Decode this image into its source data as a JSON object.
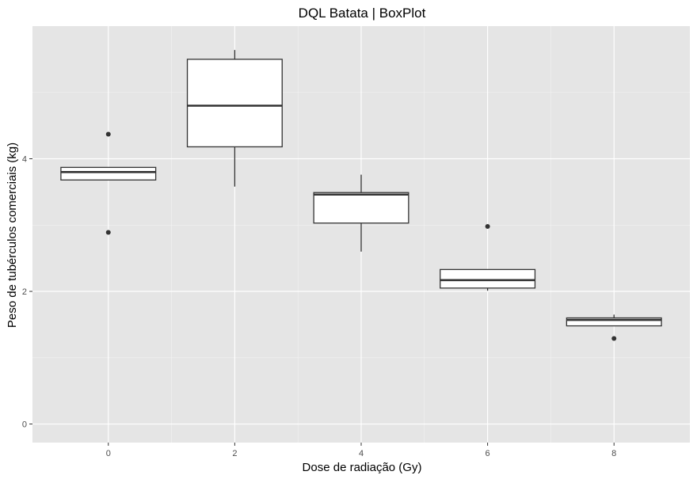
{
  "chart_data": {
    "type": "boxplot",
    "title": "DQL Batata | BoxPlot",
    "xlabel": "Dose de radiação (Gy)",
    "ylabel": "Peso de tubérculos comerciais (kg)",
    "x_ticks": [
      "0",
      "2",
      "4",
      "6",
      "8"
    ],
    "y_ticks": [
      "0",
      "2",
      "4"
    ],
    "xlim": [
      -1.2,
      9.2
    ],
    "ylim": [
      -0.28,
      6.0
    ],
    "grid": true,
    "colors": {
      "panel": "#e5e5e5",
      "grid_major": "#ffffff",
      "box_fill": "#ffffff",
      "box_line": "#333333",
      "outlier": "#333333"
    },
    "boxes": [
      {
        "x": 0,
        "lower_whisker": 3.68,
        "q1": 3.68,
        "median": 3.8,
        "q3": 3.87,
        "upper_whisker": 3.87,
        "outliers": [
          4.37,
          2.89
        ]
      },
      {
        "x": 2,
        "lower_whisker": 3.58,
        "q1": 4.18,
        "median": 4.8,
        "q3": 5.5,
        "upper_whisker": 5.64,
        "outliers": []
      },
      {
        "x": 4,
        "lower_whisker": 2.6,
        "q1": 3.03,
        "median": 3.46,
        "q3": 3.49,
        "upper_whisker": 3.76,
        "outliers": []
      },
      {
        "x": 6,
        "lower_whisker": 2.01,
        "q1": 2.05,
        "median": 2.17,
        "q3": 2.33,
        "upper_whisker": 2.33,
        "outliers": [
          2.98
        ]
      },
      {
        "x": 8,
        "lower_whisker": 1.48,
        "q1": 1.48,
        "median": 1.57,
        "q3": 1.6,
        "upper_whisker": 1.65,
        "outliers": [
          1.29
        ]
      }
    ]
  }
}
